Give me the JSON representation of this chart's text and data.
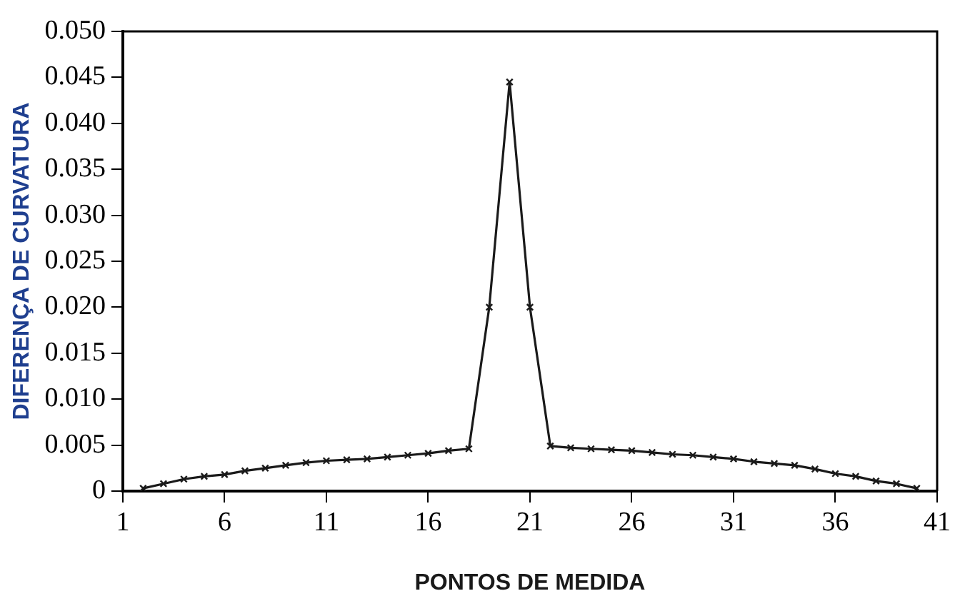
{
  "chart_data": {
    "type": "line",
    "xlabel": "PONTOS DE MEDIDA",
    "ylabel": "DIFERENÇA DE CURVATURA",
    "x": [
      2,
      3,
      4,
      5,
      6,
      7,
      8,
      9,
      10,
      11,
      12,
      13,
      14,
      15,
      16,
      17,
      18,
      19,
      20,
      21,
      22,
      23,
      24,
      25,
      26,
      27,
      28,
      29,
      30,
      31,
      32,
      33,
      34,
      35,
      36,
      37,
      38,
      39,
      40
    ],
    "series": [
      {
        "color": "#1a1a1a",
        "values": [
          0.0003,
          0.0008,
          0.0013,
          0.0016,
          0.0018,
          0.0022,
          0.0025,
          0.0028,
          0.0031,
          0.0033,
          0.0034,
          0.0035,
          0.0037,
          0.0039,
          0.0041,
          0.0044,
          0.0046,
          0.02,
          0.0445,
          0.02,
          0.0049,
          0.0047,
          0.0046,
          0.0045,
          0.0044,
          0.0042,
          0.004,
          0.0039,
          0.0037,
          0.0035,
          0.0032,
          0.003,
          0.0028,
          0.0024,
          0.0019,
          0.0016,
          0.0011,
          0.0008,
          0.0003
        ]
      }
    ],
    "xlim": [
      1,
      41
    ],
    "xticks": [
      1,
      6,
      11,
      16,
      21,
      26,
      31,
      36,
      41
    ],
    "ylim": [
      0,
      0.05
    ],
    "yticks": [
      0,
      0.005,
      {
        "value": 0.01,
        "label": "0.010"
      },
      0.015,
      {
        "value": 0.02,
        "label": "0.020"
      },
      0.025,
      {
        "value": 0.03,
        "label": "0.030"
      },
      0.035,
      {
        "value": 0.04,
        "label": "0.040"
      },
      0.045,
      {
        "value": 0.05,
        "label": "0.050"
      }
    ],
    "grid": false,
    "legend": false,
    "marker": "cross",
    "line_style": "solid"
  }
}
